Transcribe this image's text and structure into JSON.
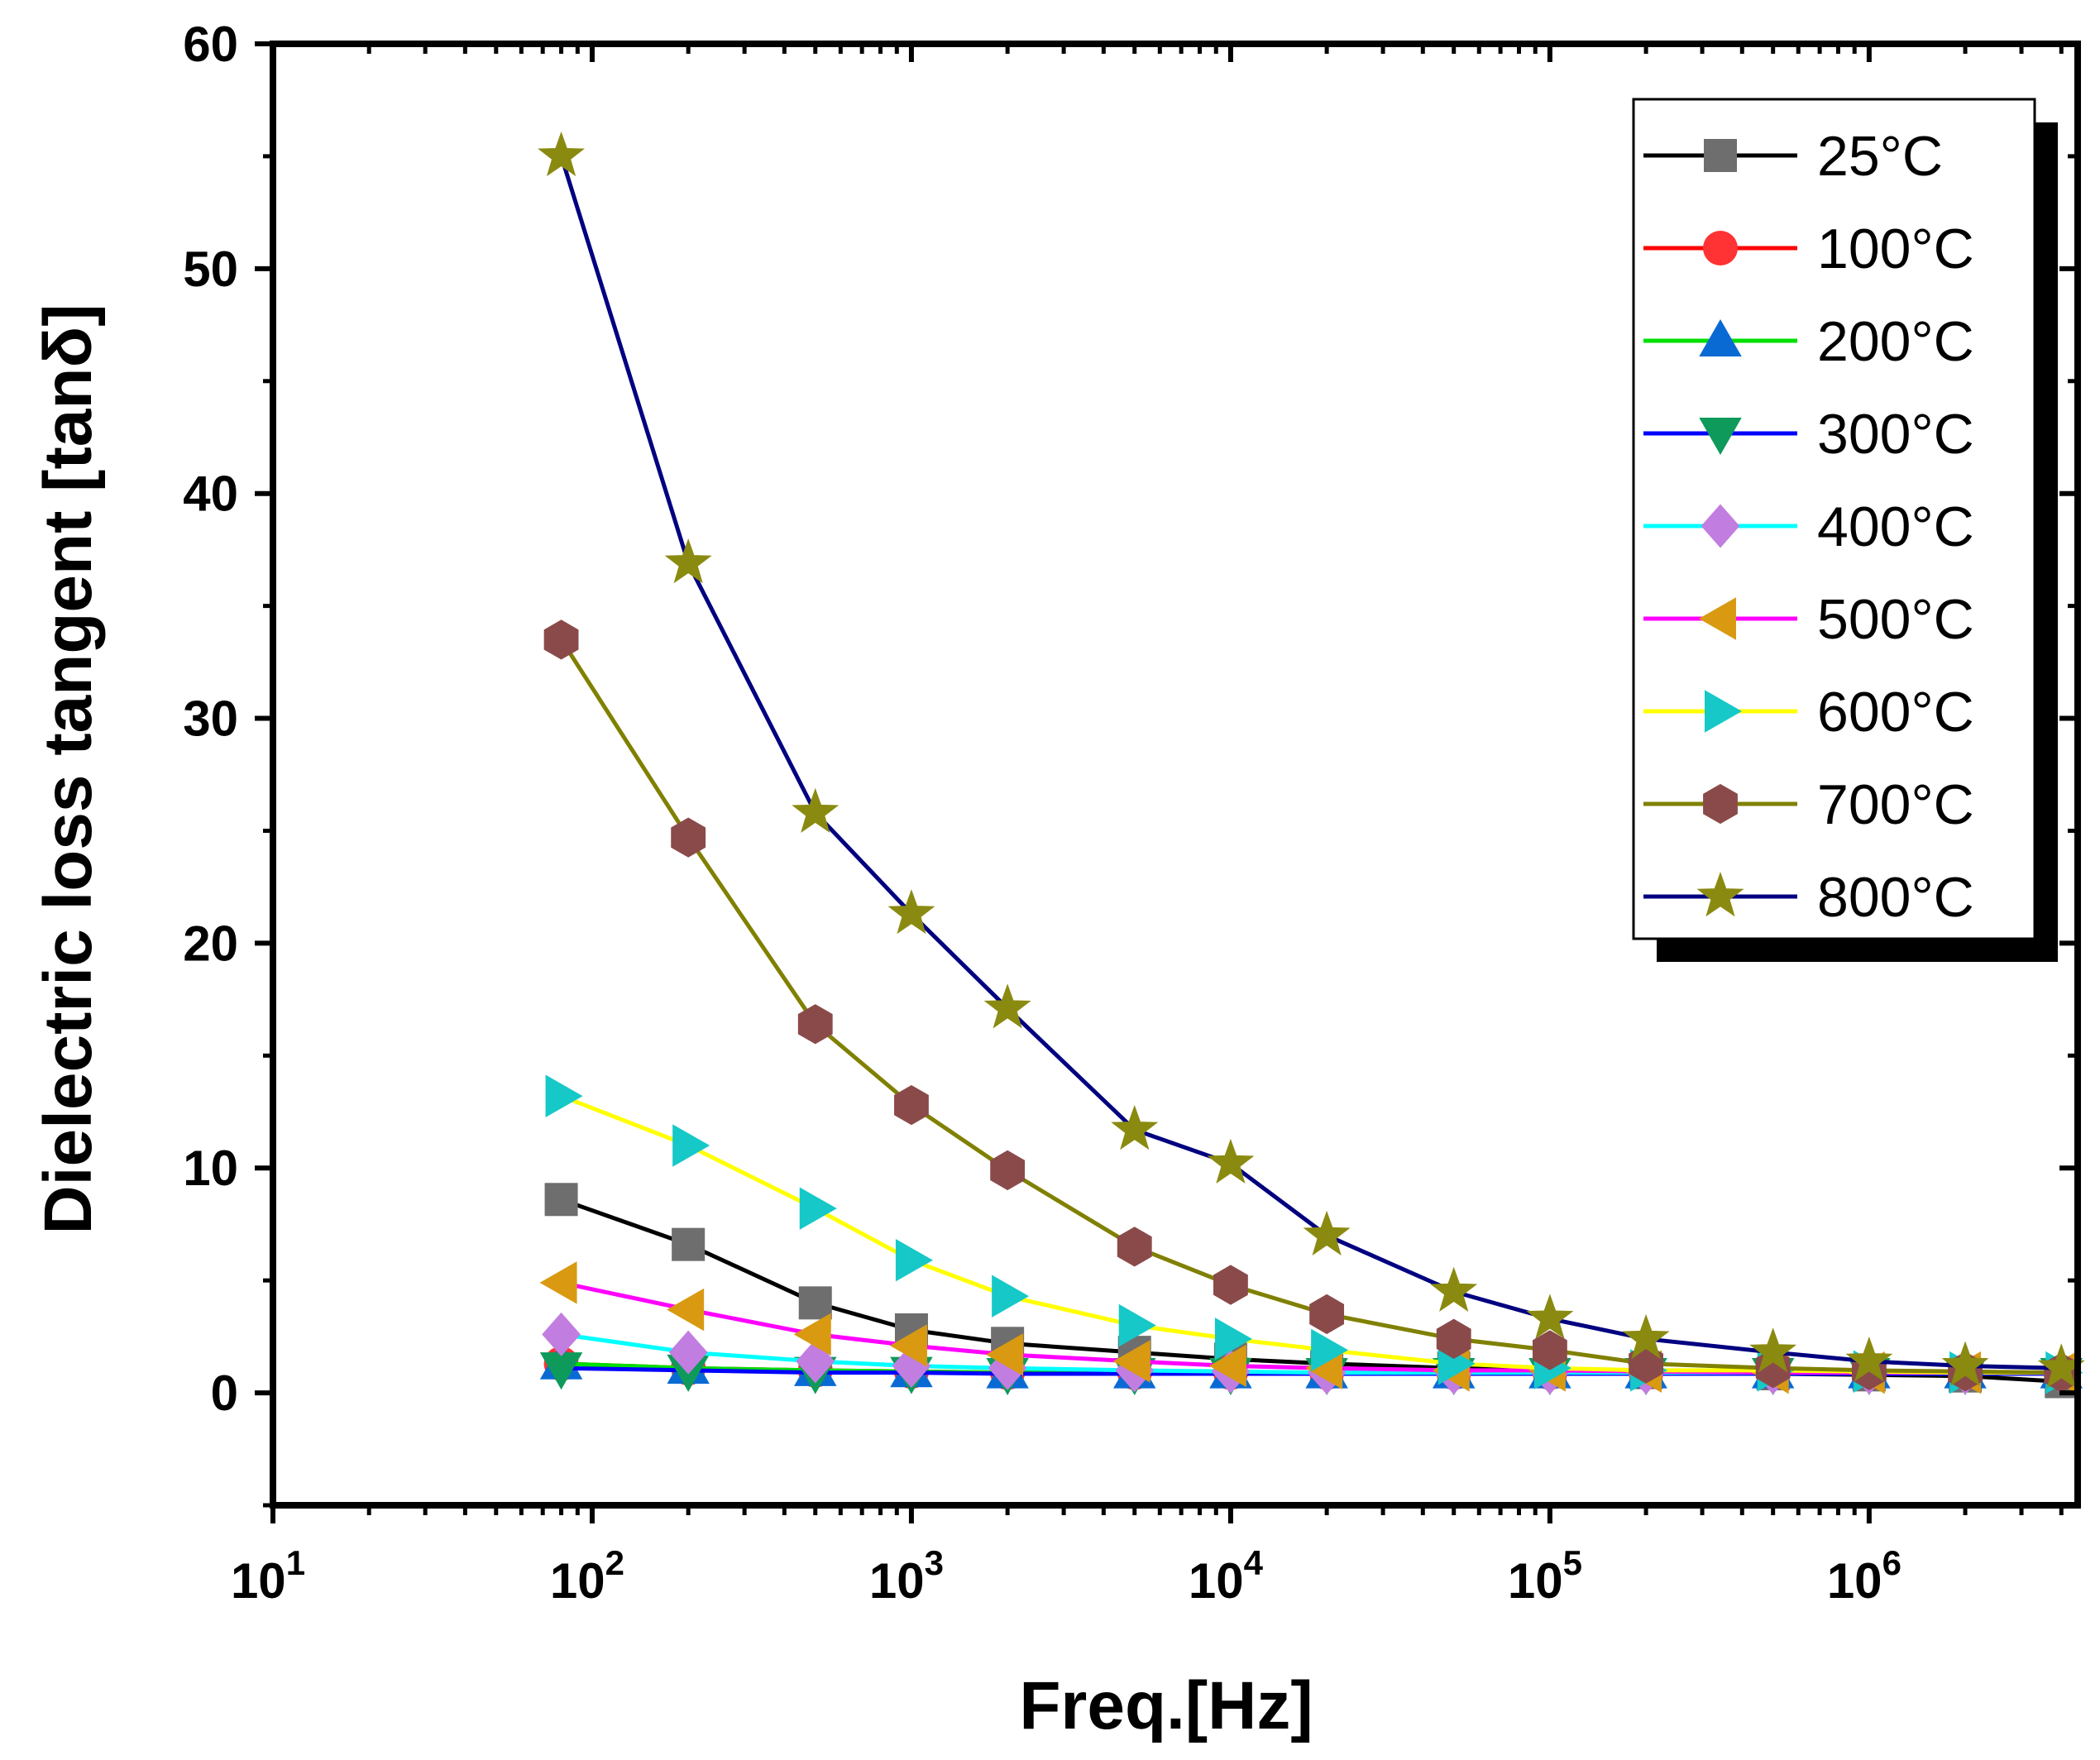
{
  "chart_data": {
    "type": "line",
    "title": "",
    "xlabel": "Freq.[Hz]",
    "ylabel": "Dielectric loss tangent [tanδ]",
    "xscale": "log",
    "xlim": [
      10,
      4500000
    ],
    "ylim": [
      -5,
      60
    ],
    "yticks": [
      0,
      10,
      20,
      30,
      40,
      50,
      60
    ],
    "yticklabels": [
      "0",
      "10",
      "20",
      "30",
      "40",
      "50",
      "60"
    ],
    "xticks": [
      {
        "value": 10,
        "base": "10",
        "exp": "1"
      },
      {
        "value": 100,
        "base": "10",
        "exp": "2"
      },
      {
        "value": 1000,
        "base": "10",
        "exp": "3"
      },
      {
        "value": 10000,
        "base": "10",
        "exp": "4"
      },
      {
        "value": 100000,
        "base": "10",
        "exp": "5"
      },
      {
        "value": 1000000,
        "base": "10",
        "exp": "6"
      }
    ],
    "x": [
      80,
      200,
      500,
      1000,
      2000,
      5000,
      10000,
      20000,
      50000,
      100000,
      200000,
      500000,
      1000000,
      2000000,
      4000000
    ],
    "legend_position": "top-right",
    "series": [
      {
        "name": "25°C",
        "color": "#000000",
        "marker_color": "#6e6e6e",
        "marker": "square",
        "values": [
          8.6,
          6.6,
          4.0,
          2.8,
          2.2,
          1.8,
          1.5,
          1.3,
          1.1,
          1.0,
          0.9,
          0.85,
          0.8,
          0.75,
          0.5
        ]
      },
      {
        "name": "100°C",
        "color": "#ff0000",
        "marker_color": "#ff3333",
        "marker": "circle",
        "values": [
          1.3,
          1.1,
          1.0,
          0.95,
          0.9,
          0.9,
          0.9,
          0.9,
          0.9,
          0.9,
          0.9,
          0.9,
          0.9,
          0.9,
          0.9
        ]
      },
      {
        "name": "200°C",
        "color": "#00e000",
        "marker_color": "#0a6ad4",
        "marker": "triangle-up",
        "values": [
          1.3,
          1.1,
          1.0,
          0.95,
          0.9,
          0.9,
          0.9,
          0.9,
          0.9,
          0.9,
          0.9,
          0.9,
          0.9,
          0.9,
          0.9
        ]
      },
      {
        "name": "300°C",
        "color": "#0000ff",
        "marker_color": "#0e9a5a",
        "marker": "triangle-down",
        "values": [
          1.1,
          1.0,
          0.9,
          0.9,
          0.85,
          0.85,
          0.85,
          0.85,
          0.85,
          0.85,
          0.85,
          0.85,
          0.85,
          0.85,
          0.85
        ]
      },
      {
        "name": "400°C",
        "color": "#00ffff",
        "marker_color": "#c27de0",
        "marker": "diamond",
        "values": [
          2.6,
          1.8,
          1.4,
          1.2,
          1.1,
          1.0,
          0.95,
          0.9,
          0.9,
          0.9,
          0.9,
          0.9,
          0.9,
          0.9,
          0.9
        ]
      },
      {
        "name": "500°C",
        "color": "#ff00ff",
        "marker_color": "#d99a12",
        "marker": "triangle-left",
        "values": [
          4.9,
          3.7,
          2.6,
          2.1,
          1.7,
          1.4,
          1.2,
          1.1,
          1.0,
          1.0,
          0.95,
          0.9,
          0.9,
          0.9,
          0.9
        ]
      },
      {
        "name": "600°C",
        "color": "#ffff00",
        "marker_color": "#16c8c8",
        "marker": "triangle-right",
        "values": [
          13.2,
          11.0,
          8.2,
          5.9,
          4.3,
          3.0,
          2.4,
          1.9,
          1.3,
          1.1,
          1.0,
          1.0,
          0.95,
          0.9,
          0.9
        ]
      },
      {
        "name": "700°C",
        "color": "#808000",
        "marker_color": "#8b4a4a",
        "marker": "hexagon",
        "values": [
          33.5,
          24.7,
          16.4,
          12.8,
          9.9,
          6.5,
          4.8,
          3.5,
          2.4,
          1.9,
          1.3,
          1.1,
          1.0,
          0.95,
          0.9
        ]
      },
      {
        "name": "800°C",
        "color": "#000080",
        "marker_color": "#8a8a10",
        "marker": "star",
        "values": [
          55.0,
          36.9,
          25.8,
          21.3,
          17.1,
          11.7,
          10.2,
          7.0,
          4.5,
          3.3,
          2.4,
          1.8,
          1.4,
          1.2,
          1.1
        ]
      }
    ]
  }
}
